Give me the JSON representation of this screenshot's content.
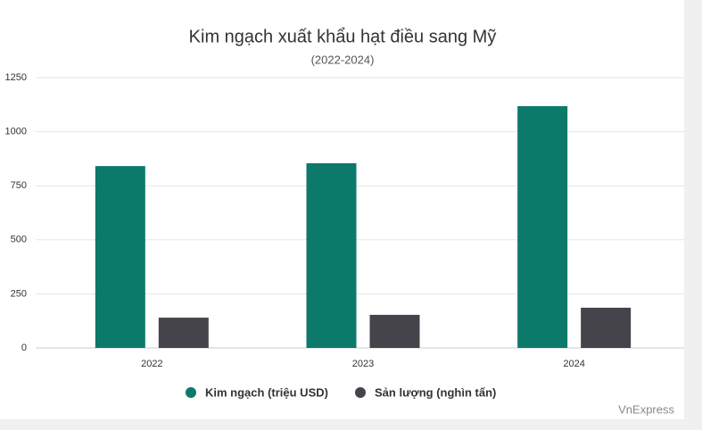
{
  "chart_data": {
    "type": "bar",
    "title": "Kim ngạch xuất khẩu hạt điều sang Mỹ",
    "subtitle": "(2022-2024)",
    "categories": [
      "2022",
      "2023",
      "2024"
    ],
    "series": [
      {
        "name": "Kim ngạch (triệu USD)",
        "color": "#0b7a6a",
        "values": [
          841,
          854,
          1118
        ]
      },
      {
        "name": "Sản lượng (nghìn tấn)",
        "color": "#45444a",
        "values": [
          140,
          153,
          186
        ]
      }
    ],
    "ylim": [
      0,
      1250
    ],
    "yticks": [
      0,
      250,
      500,
      750,
      1000,
      1250
    ],
    "grid": true,
    "legend": "bottom",
    "watermark": "VnExpress"
  }
}
